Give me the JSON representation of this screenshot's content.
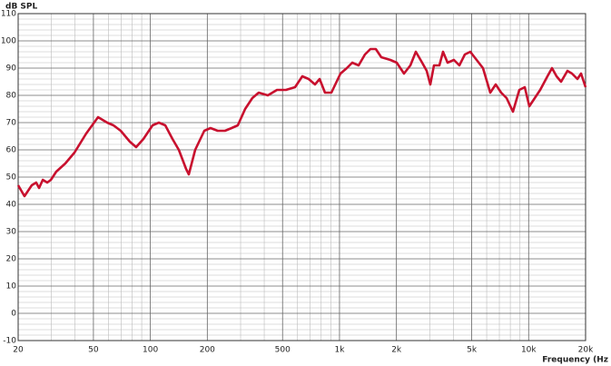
{
  "chart_data": {
    "type": "line",
    "y_axis_label": "dB SPL",
    "x_axis_label": "Frequency (Hz",
    "x_scale": "log",
    "xlim": [
      20,
      20000
    ],
    "ylim": [
      -10,
      110
    ],
    "xticks": [
      20,
      50,
      100,
      200,
      500,
      {
        "value": 1000,
        "label": "1k"
      },
      {
        "value": 2000,
        "label": "2k"
      },
      {
        "value": 5000,
        "label": "5k"
      },
      {
        "value": 10000,
        "label": "10k"
      },
      {
        "value": 20000,
        "label": "20k"
      }
    ],
    "xminor_ticks": [
      30,
      40,
      60,
      70,
      80,
      90,
      300,
      400,
      600,
      700,
      800,
      900,
      3000,
      4000,
      6000,
      7000,
      8000,
      9000
    ],
    "yticks": [
      -10,
      0,
      10,
      20,
      30,
      40,
      50,
      60,
      70,
      80,
      90,
      100,
      110
    ],
    "yminor_ticks": [
      -8,
      -6,
      -4,
      -2,
      2,
      4,
      6,
      8,
      12,
      14,
      16,
      18,
      22,
      24,
      26,
      28,
      32,
      34,
      36,
      38,
      42,
      44,
      46,
      48,
      52,
      54,
      56,
      58,
      62,
      64,
      66,
      68,
      72,
      74,
      76,
      78,
      82,
      84,
      86,
      88,
      92,
      94,
      96,
      98,
      102,
      104,
      106,
      108
    ],
    "grid": true,
    "series": [
      {
        "color": "#c8102e",
        "x": [
          20,
          21.6,
          23.6,
          24.9,
          25.8,
          27,
          28.5,
          29.8,
          31.8,
          35.5,
          39.7,
          45.8,
          52.9,
          59.1,
          63.8,
          69.7,
          77.9,
          84.1,
          91.9,
          102.7,
          110.9,
          119.9,
          130.9,
          141.4,
          154.5,
          159.7,
          172.6,
          192.8,
          208,
          227,
          248,
          269,
          290,
          317,
          346,
          374,
          418,
          467,
          521,
          582,
          636,
          687,
          742,
          785,
          838,
          906,
          1012,
          1093,
          1168,
          1262,
          1363,
          1457,
          1556,
          1663,
          1858,
          2007,
          2193,
          2370,
          2532,
          2735,
          2891,
          3021,
          3158,
          3374,
          3527,
          3727,
          4027,
          4303,
          4598,
          4914,
          5309,
          5736,
          6267,
          6697,
          7156,
          7646,
          8262,
          8926,
          9538,
          10083,
          10538,
          11509,
          12573,
          13292,
          14047,
          14843,
          16037,
          16948,
          18109,
          18929,
          20000
        ],
        "values": [
          47,
          43,
          47,
          48,
          46,
          49,
          48,
          49,
          52,
          55,
          59,
          66,
          72,
          70,
          69,
          67,
          63,
          61,
          64,
          69,
          70,
          69,
          64,
          60,
          53,
          51,
          60,
          67,
          68,
          67,
          67,
          68,
          69,
          75,
          79,
          81,
          80,
          82,
          82,
          83,
          87,
          86,
          84,
          86,
          81,
          81,
          88,
          90,
          92,
          91,
          95,
          97,
          97,
          94,
          93,
          92,
          88,
          91,
          96,
          92,
          89,
          84,
          91,
          91,
          96,
          92,
          93,
          91,
          95,
          96,
          93,
          90,
          81,
          84,
          81,
          79,
          74,
          82,
          83,
          76,
          78,
          82,
          87,
          90,
          87,
          85,
          89,
          88,
          86,
          88,
          83
        ]
      }
    ]
  }
}
